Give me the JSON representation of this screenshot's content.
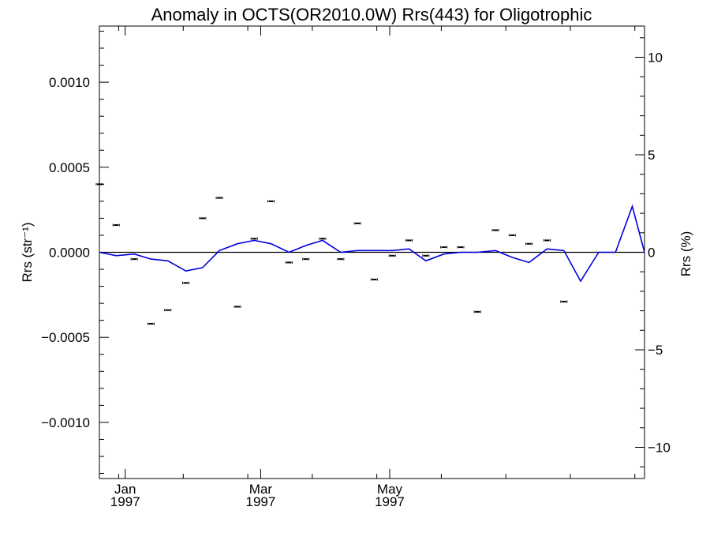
{
  "chart_data": {
    "type": "line",
    "title": "Anomaly in OCTS(OR2010.0W) Rrs(443) for Oligotrophic",
    "ylabel_left": "Rrs (str⁻¹)",
    "ylabel_right": "Rrs (%)",
    "left_axis": {
      "ylim": [
        -0.00133,
        0.00133
      ],
      "ticks": [
        -0.001,
        -0.0005,
        0.0,
        0.0005,
        0.001
      ],
      "tick_labels": [
        "−0.0010",
        "−0.0005",
        "0.0000",
        "0.0005",
        "0.0010"
      ]
    },
    "right_axis": {
      "ylim": [
        -11.6,
        11.6
      ],
      "ticks": [
        -10,
        -5,
        0,
        5,
        10
      ],
      "tick_labels": [
        "−10",
        "−5",
        "0",
        "5",
        "10"
      ]
    },
    "x_axis": {
      "xlim_days": [
        -4,
        80.5
      ],
      "major_ticks": [
        {
          "day": 0,
          "label": [
            "Jan",
            "1997"
          ]
        },
        {
          "day": 21,
          "label": [
            "Mar",
            "1997"
          ]
        },
        {
          "day": 41,
          "label": [
            "May",
            "1997"
          ]
        }
      ]
    },
    "zero_line": 0,
    "series": [
      {
        "kind": "line",
        "color": "#0000dd",
        "x": [
          -4,
          -1.4,
          1.4,
          4,
          6.6,
          9.4,
          12,
          14.6,
          17.4,
          20,
          22.6,
          25.4,
          28,
          30.6,
          33.4,
          36,
          38.6,
          41.4,
          44,
          46.6,
          49.4,
          52,
          54.6,
          57.4,
          60,
          62.6,
          65.4,
          68
        ],
        "y": [
          0.0,
          -2e-05,
          -1e-05,
          -4e-05,
          -5e-05,
          -0.00011,
          -9e-05,
          1e-05,
          5e-05,
          7e-05,
          5e-05,
          0.0,
          4e-05,
          7e-05,
          0.0,
          1e-05,
          1e-05,
          1e-05,
          2e-05,
          -5e-05,
          -1e-05,
          0.0,
          0.0,
          1e-05,
          -3e-05,
          -6e-05,
          2e-05,
          1e-05
        ]
      },
      {
        "kind": "points",
        "color": "#000000",
        "x": [
          -4,
          -1.4,
          1.4,
          4,
          6.6,
          9.4,
          12,
          14.6,
          17.4,
          20,
          22.6,
          25.4,
          28,
          30.6,
          33.4,
          36,
          38.6,
          41.4,
          44,
          46.6,
          49.4,
          52,
          54.6,
          57.4,
          60,
          62.6,
          65.4,
          68
        ],
        "y": [
          0.0004,
          0.00016,
          -4e-05,
          -0.00042,
          -0.00034,
          -0.00018,
          0.0002,
          0.00032,
          -0.00032,
          8e-05,
          0.0003,
          -6e-05,
          -4e-05,
          8e-05,
          -4e-05,
          0.00017,
          -0.00016,
          -2e-05,
          7e-05,
          -2e-05,
          3e-05,
          3e-05,
          -0.00035,
          0.00013,
          0.0001,
          5e-05,
          7e-05,
          -0.00029
        ]
      }
    ],
    "extra_points": {
      "x": [
        70.6,
        73.4,
        76,
        78.6,
        80.5
      ],
      "y": [
        -0.00017,
        0.0,
        0.0,
        0.00027,
        0.0
      ]
    }
  }
}
